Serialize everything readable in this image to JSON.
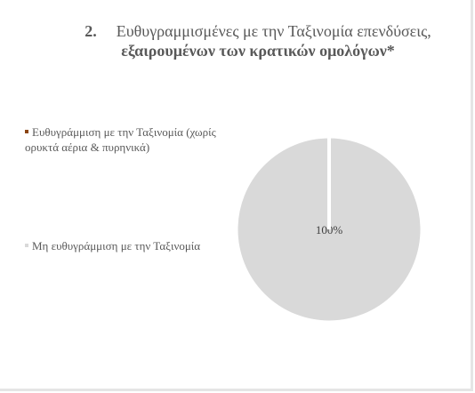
{
  "title": {
    "number": "2.",
    "part1": "Ευθυγραμμισμένες με την Ταξινομία επενδύσεις, ",
    "bold": "εξαιρουμένων των κρατικών ομολόγων*"
  },
  "legend": [
    {
      "label": "Ευθυγράμμιση με την Ταξινομία (χωρίς ορυκτά αέρια & πυρηνικά)",
      "color": "#8B4513"
    },
    {
      "label": "Μη ευθυγράμμιση με την Ταξινομία",
      "color": "#d9d9d9"
    }
  ],
  "chart_data": {
    "type": "pie",
    "title": "2. Ευθυγραμμισμένες με την Ταξινομία επενδύσεις, εξαιρουμένων των κρατικών ομολόγων*",
    "categories": [
      "Ευθυγράμμιση με την Ταξινομία (χωρίς ορυκτά αέρια & πυρηνικά)",
      "Μη ευθυγράμμιση με την Ταξινομία"
    ],
    "values": [
      0,
      100
    ],
    "colors": [
      "#8B4513",
      "#d9d9d9"
    ],
    "data_labels": [
      "",
      "100%"
    ],
    "legend_position": "left"
  }
}
